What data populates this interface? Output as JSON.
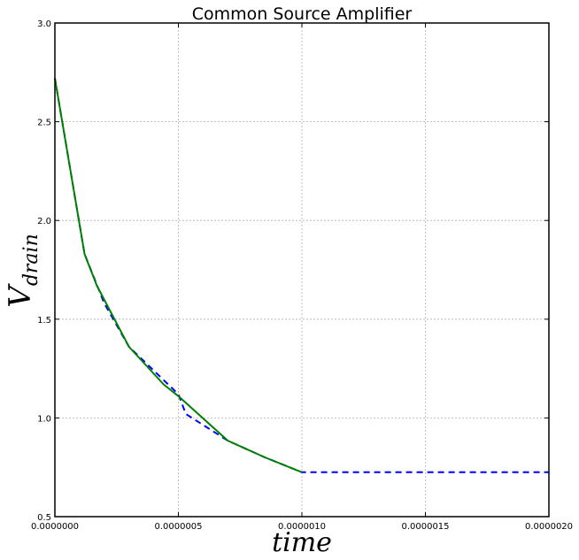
{
  "chart_data": {
    "type": "line",
    "title": "Common Source Amplifier",
    "xlabel": "time",
    "ylabel_main": "V",
    "ylabel_sub": "drain",
    "xlim": [
      0,
      2e-06
    ],
    "ylim": [
      0.5,
      3.0
    ],
    "grid": true,
    "x_ticks": [
      0,
      5e-07,
      1e-06,
      1.5e-06,
      2e-06
    ],
    "x_tick_labels": [
      "0.0000000",
      "0.0000005",
      "0.0000010",
      "0.0000015",
      "0.0000020"
    ],
    "y_ticks": [
      0.5,
      1.0,
      1.5,
      2.0,
      2.5,
      3.0
    ],
    "y_tick_labels": [
      "0.5",
      "1.0",
      "1.5",
      "2.0",
      "2.5",
      "3.0"
    ],
    "series": [
      {
        "color": "#0000ff",
        "style": "dashed",
        "points": [
          [
            0,
            2.72
          ],
          [
            1.2e-07,
            1.83
          ],
          [
            2e-07,
            1.58
          ],
          [
            3e-07,
            1.36
          ],
          [
            4e-07,
            1.24
          ],
          [
            5e-07,
            1.12
          ],
          [
            5.3e-07,
            1.02
          ],
          [
            7e-07,
            0.885
          ],
          [
            8.5e-07,
            0.8
          ],
          [
            1e-06,
            0.725
          ],
          [
            2e-06,
            0.725
          ]
        ]
      },
      {
        "color": "#008000",
        "style": "solid",
        "points": [
          [
            0,
            2.72
          ],
          [
            1.2e-07,
            1.83
          ],
          [
            1.7e-07,
            1.67
          ],
          [
            3e-07,
            1.36
          ],
          [
            4.4e-07,
            1.17
          ],
          [
            5e-07,
            1.11
          ],
          [
            7e-07,
            0.885
          ],
          [
            8.5e-07,
            0.8
          ],
          [
            1e-06,
            0.725
          ]
        ]
      }
    ]
  }
}
